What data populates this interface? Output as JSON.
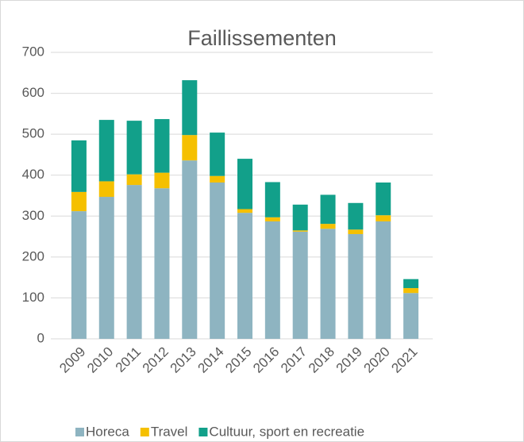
{
  "chart_data": {
    "type": "stacked_bar",
    "title": "Faillissementen",
    "categories": [
      "2009",
      "2010",
      "2011",
      "2012",
      "2013",
      "2014",
      "2015",
      "2016",
      "2017",
      "2018",
      "2019",
      "2020",
      "2021"
    ],
    "series": [
      {
        "name": "Horeca",
        "color": "#8eb4c1",
        "values": [
          312,
          347,
          376,
          368,
          436,
          382,
          308,
          287,
          262,
          269,
          256,
          287,
          112
        ]
      },
      {
        "name": "Travel",
        "color": "#f5c000",
        "values": [
          47,
          38,
          26,
          38,
          62,
          16,
          9,
          10,
          3,
          12,
          11,
          15,
          12
        ]
      },
      {
        "name": "Cultuur, sport en recreatie",
        "color": "#12a08a",
        "values": [
          126,
          150,
          131,
          131,
          134,
          106,
          123,
          86,
          63,
          71,
          65,
          80,
          22
        ]
      }
    ],
    "ylim": [
      0,
      700
    ],
    "yticks": [
      0,
      100,
      200,
      300,
      400,
      500,
      600,
      700
    ],
    "grid": true,
    "legend": "bottom"
  }
}
